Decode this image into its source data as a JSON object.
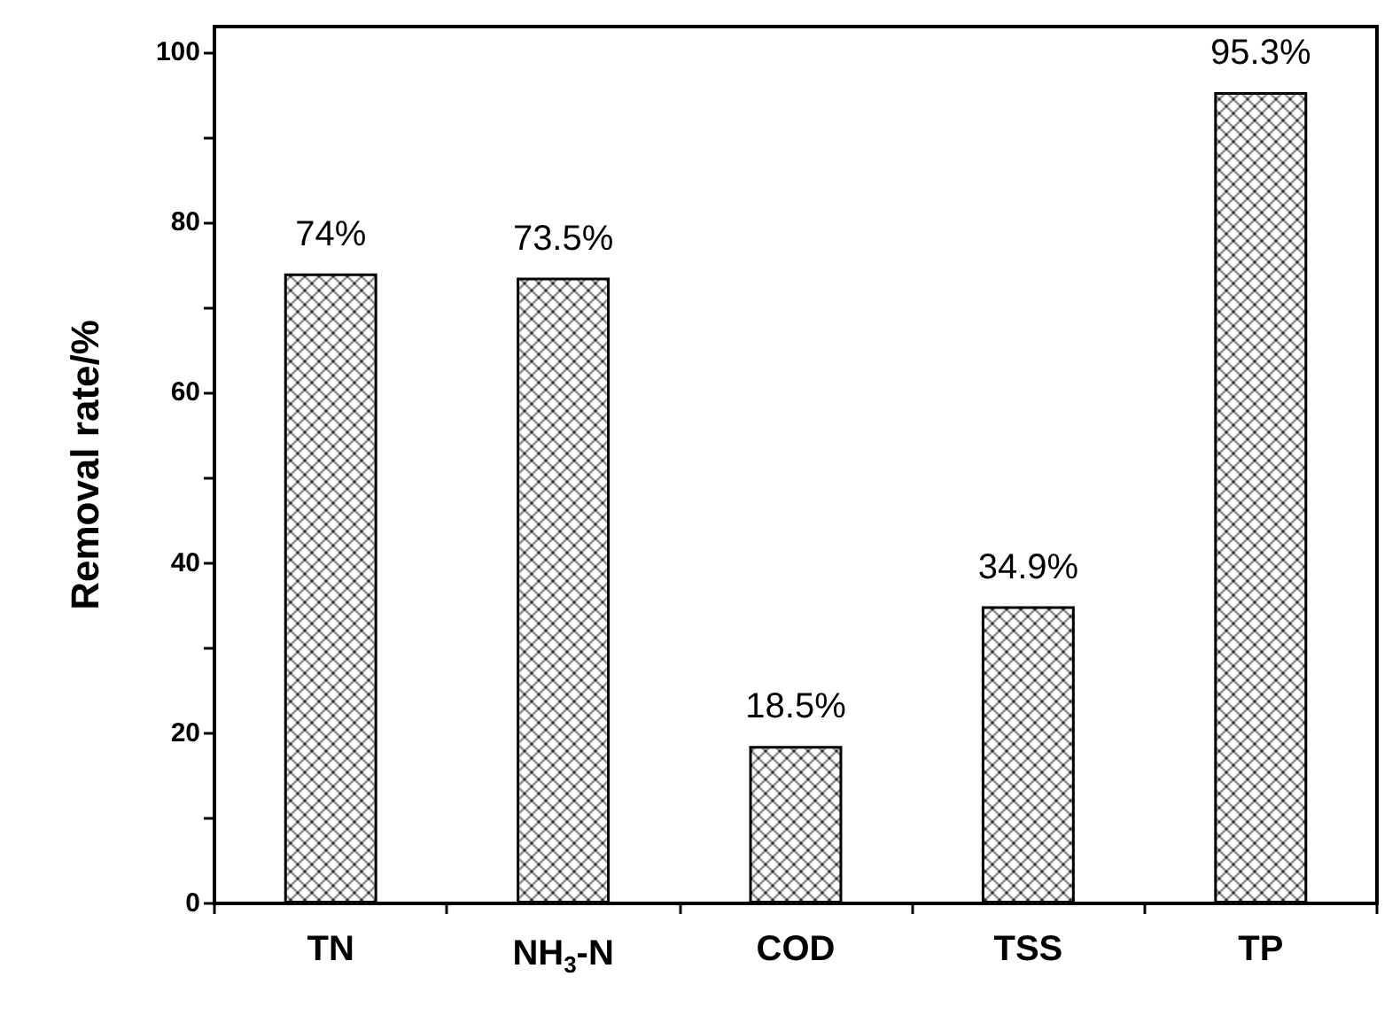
{
  "chart_data": {
    "type": "bar",
    "ylabel": "Removal rate/%",
    "categories": [
      "TN",
      "NH$_{3}$-N",
      "COD",
      "TSS",
      "TP"
    ],
    "values": [
      74,
      73.5,
      18.5,
      34.9,
      95.3
    ],
    "value_labels": [
      "74%",
      "73.5%",
      "18.5%",
      "34.9%",
      "95.3%"
    ],
    "color": "#000000",
    "ylim": [
      0,
      103
    ],
    "yticks": [
      0,
      {
        "value": 10,
        "label": null
      },
      20,
      {
        "value": 30,
        "label": null
      },
      40,
      {
        "value": 50,
        "label": null
      },
      60,
      {
        "value": 70,
        "label": null
      },
      80,
      {
        "value": 90,
        "label": null
      },
      100
    ],
    "grid": false
  }
}
